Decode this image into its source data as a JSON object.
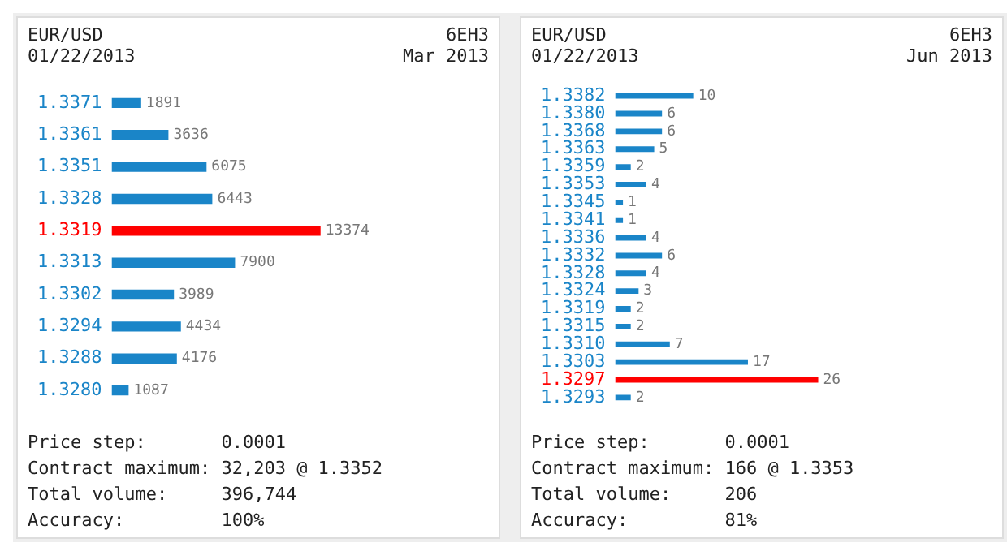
{
  "chart_data": [
    {
      "type": "bar",
      "orientation": "horizontal",
      "title": "EUR/USD",
      "subtitle": "01/22/2013",
      "categories": [
        "1.3371",
        "1.3361",
        "1.3351",
        "1.3328",
        "1.3319",
        "1.3313",
        "1.3302",
        "1.3294",
        "1.3288",
        "1.3280"
      ],
      "values": [
        1891,
        3636,
        6075,
        6443,
        13374,
        7900,
        3989,
        4434,
        4176,
        1087
      ],
      "colors": [
        "#1a85c8",
        "#1a85c8",
        "#1a85c8",
        "#1a85c8",
        "#ff0000",
        "#1a85c8",
        "#1a85c8",
        "#1a85c8",
        "#1a85c8",
        "#1a85c8"
      ],
      "data_labels": true,
      "grid": false,
      "legend": false,
      "annotations": [
        "6EH3",
        "Mar 2013",
        "Price step:       0.0001",
        "Contract maximum: 32,203 @ 1.3352",
        "Total volume:     396,744",
        "Accuracy:         100%"
      ]
    },
    {
      "type": "bar",
      "orientation": "horizontal",
      "title": "EUR/USD",
      "subtitle": "01/22/2013",
      "categories": [
        "1.3382",
        "1.3380",
        "1.3368",
        "1.3363",
        "1.3359",
        "1.3353",
        "1.3345",
        "1.3341",
        "1.3336",
        "1.3332",
        "1.3328",
        "1.3324",
        "1.3319",
        "1.3315",
        "1.3310",
        "1.3303",
        "1.3297",
        "1.3293"
      ],
      "values": [
        10,
        6,
        6,
        5,
        2,
        4,
        1,
        1,
        4,
        6,
        4,
        3,
        2,
        2,
        7,
        17,
        26,
        2
      ],
      "colors": [
        "#1a85c8",
        "#1a85c8",
        "#1a85c8",
        "#1a85c8",
        "#1a85c8",
        "#1a85c8",
        "#1a85c8",
        "#1a85c8",
        "#1a85c8",
        "#1a85c8",
        "#1a85c8",
        "#1a85c8",
        "#1a85c8",
        "#1a85c8",
        "#1a85c8",
        "#1a85c8",
        "#ff0000",
        "#1a85c8"
      ],
      "data_labels": true,
      "grid": false,
      "legend": false,
      "annotations": [
        "6EH3",
        "Jun 2013",
        "Price step:       0.0001",
        "Contract maximum: 166 @ 1.3353",
        "Total volume:     206",
        "Accuracy:         81%"
      ]
    }
  ]
}
